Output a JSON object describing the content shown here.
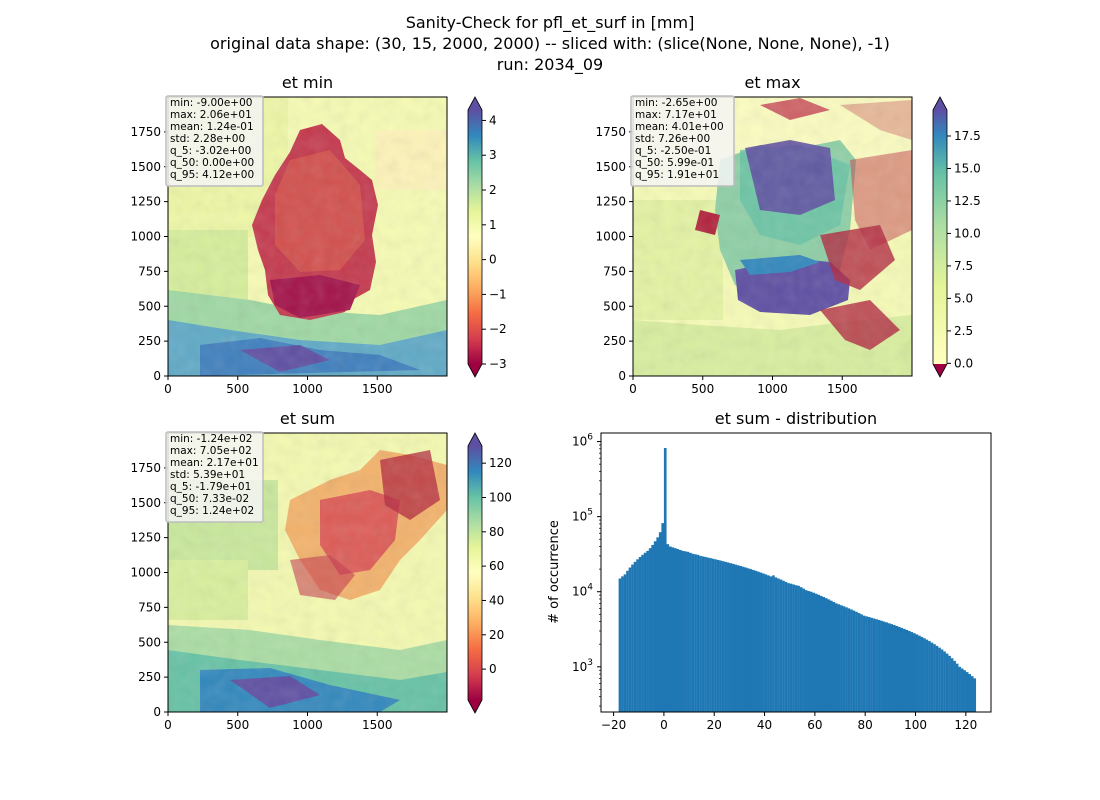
{
  "suptitle": {
    "line1": "Sanity-Check for pfl_et_surf in [mm]",
    "line2": "original data shape: (30, 15, 2000, 2000) -- sliced with: (slice(None, None, None), -1)",
    "line3": "run: 2034_09"
  },
  "chart_data": [
    {
      "type": "heatmap",
      "title": "et min",
      "xlabel": "",
      "ylabel": "",
      "x_ticks": [
        "0",
        "500",
        "1000",
        "1500"
      ],
      "y_ticks": [
        "0",
        "250",
        "500",
        "750",
        "1000",
        "1250",
        "1500",
        "1750"
      ],
      "xlim": [
        0,
        2000
      ],
      "ylim": [
        0,
        2000
      ],
      "colormap": "Spectral",
      "colorbar_range": [
        -3,
        4.3
      ],
      "colorbar_ticks": [
        "4",
        "3",
        "2",
        "1",
        "0",
        "−1",
        "−2",
        "−3"
      ],
      "colorbar_tick_values": [
        4,
        3,
        2,
        1,
        0,
        -1,
        -2,
        -3
      ],
      "colorbar_extend": "both",
      "stats": [
        "min: -9.00e+00",
        "max: 2.06e+01",
        "mean: 1.24e-01",
        "std: 2.28e+00",
        "q_5: -3.02e+00",
        "q_50: 0.00e+00",
        "q_95: 4.12e+00"
      ]
    },
    {
      "type": "heatmap",
      "title": "et max",
      "xlabel": "",
      "ylabel": "",
      "x_ticks": [
        "0",
        "500",
        "1000",
        "1500"
      ],
      "y_ticks": [
        "0",
        "250",
        "500",
        "750",
        "1000",
        "1250",
        "1500",
        "1750"
      ],
      "xlim": [
        0,
        2000
      ],
      "ylim": [
        0,
        2000
      ],
      "colormap": "Spectral",
      "colorbar_range": [
        -0.05,
        19.5
      ],
      "colorbar_ticks": [
        "17.5",
        "15.0",
        "12.5",
        "10.0",
        "7.5",
        "5.0",
        "2.5",
        "0.0"
      ],
      "colorbar_tick_values": [
        17.5,
        15,
        12.5,
        10,
        7.5,
        5,
        2.5,
        0
      ],
      "colorbar_extend": "both",
      "stats": [
        "min: -2.65e+00",
        "max: 7.17e+01",
        "mean: 4.01e+00",
        "std: 7.26e+00",
        "q_5: -2.50e-01",
        "q_50: 5.99e-01",
        "q_95: 1.91e+01"
      ]
    },
    {
      "type": "heatmap",
      "title": "et sum",
      "xlabel": "",
      "ylabel": "",
      "x_ticks": [
        "0",
        "500",
        "1000",
        "1500"
      ],
      "y_ticks": [
        "0",
        "250",
        "500",
        "750",
        "1000",
        "1250",
        "1500",
        "1750"
      ],
      "xlim": [
        0,
        2000
      ],
      "ylim": [
        0,
        2000
      ],
      "colormap": "Spectral",
      "colorbar_range": [
        -18,
        130
      ],
      "colorbar_ticks": [
        "120",
        "100",
        "80",
        "60",
        "40",
        "20",
        "0"
      ],
      "colorbar_tick_values": [
        120,
        100,
        80,
        60,
        40,
        20,
        0
      ],
      "colorbar_extend": "both",
      "stats": [
        "min: -1.24e+02",
        "max: 7.05e+02",
        "mean: 2.17e+01",
        "std: 5.39e+01",
        "q_5: -1.79e+01",
        "q_50: 7.33e-02",
        "q_95: 1.24e+02"
      ]
    },
    {
      "type": "bar",
      "title": "et sum - distribution",
      "xlabel": "",
      "ylabel": "# of occurrence",
      "y_scale": "log",
      "xlim": [
        -25,
        130
      ],
      "ylim": [
        250,
        1300000
      ],
      "x_ticks": [
        "−20",
        "0",
        "20",
        "40",
        "60",
        "80",
        "100",
        "120"
      ],
      "x_tick_values": [
        -20,
        0,
        20,
        40,
        60,
        80,
        100,
        120
      ],
      "y_ticks": [
        "10^3",
        "10^4",
        "10^5",
        "10^6"
      ],
      "y_tick_values": [
        1000,
        10000,
        100000,
        1000000
      ],
      "bar_color": "#1f77b4",
      "bins": {
        "start": -18,
        "width": 1,
        "counts": [
          15000,
          16000,
          17000,
          19000,
          21000,
          23000,
          25000,
          27000,
          29000,
          31000,
          33000,
          35000,
          38000,
          42000,
          47000,
          53000,
          62000,
          82000,
          820000,
          43000,
          40000,
          39000,
          38000,
          37000,
          36000,
          35000,
          34500,
          34000,
          33000,
          32000,
          31500,
          31000,
          30000,
          29500,
          29000,
          28500,
          28000,
          27500,
          27000,
          26500,
          26000,
          25500,
          25000,
          24500,
          24000,
          23500,
          23000,
          22500,
          22000,
          21500,
          21000,
          20500,
          20000,
          19500,
          19000,
          18500,
          18000,
          17500,
          17000,
          16500,
          16000,
          16500,
          15500,
          15000,
          14500,
          14000,
          13500,
          13000,
          12800,
          12500,
          12200,
          12000,
          11500,
          11000,
          10500,
          10200,
          10000,
          9700,
          9400,
          9100,
          8800,
          8500,
          8200,
          7900,
          7600,
          7300,
          7000,
          6800,
          6600,
          6400,
          6200,
          6000,
          5800,
          5600,
          5400,
          5200,
          5000,
          4800,
          4700,
          4600,
          4500,
          4400,
          4300,
          4200,
          4100,
          4000,
          3900,
          3800,
          3700,
          3600,
          3500,
          3400,
          3300,
          3200,
          3100,
          3000,
          2900,
          2800,
          2700,
          2600,
          2500,
          2400,
          2300,
          2200,
          2100,
          2000,
          1900,
          1800,
          1700,
          1600,
          1500,
          1400,
          1300,
          1200,
          1100,
          1000,
          950,
          900,
          850,
          800,
          750,
          700
        ]
      }
    }
  ]
}
